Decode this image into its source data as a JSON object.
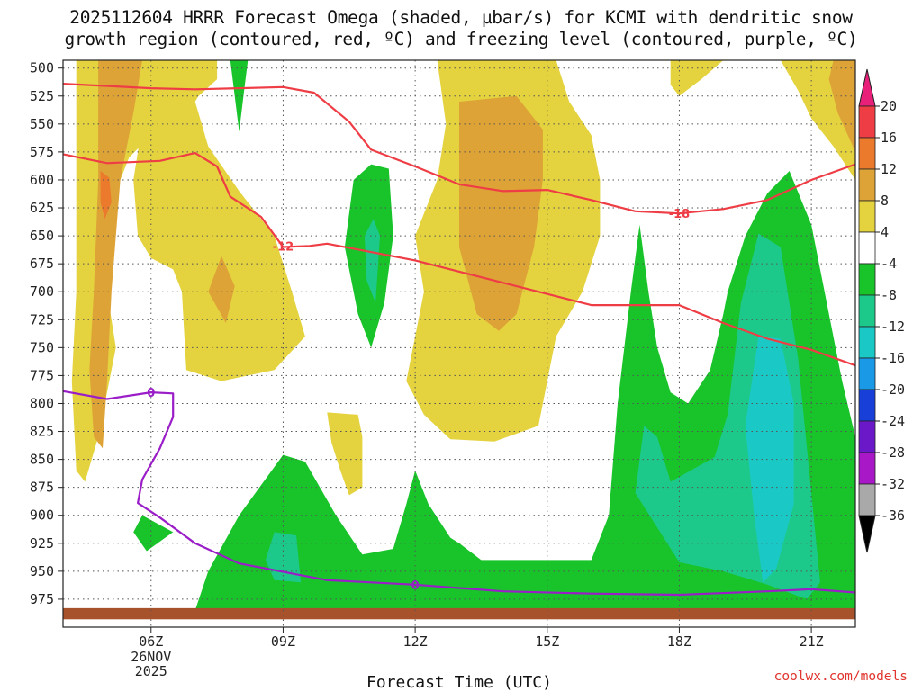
{
  "title": {
    "line1": "2025112604 HRRR Forecast Omega (shaded, µbar/s) for KCMI with dendritic snow",
    "line2": "growth region (contoured, red, ºC) and freezing level (contoured, purple, ºC)"
  },
  "credit": "coolwx.com/models",
  "chart_data": {
    "type": "heatmap",
    "title": "2025112604 HRRR Forecast Omega (shaded, µbar/s) for KCMI with dendritic snow growth region (contoured, red, ºC) and freezing level (contoured, purple, ºC)",
    "xlabel": "Forecast Time (UTC)",
    "ylabel": "",
    "x_ticks": [
      "06Z",
      "09Z",
      "12Z",
      "15Z",
      "18Z",
      "21Z"
    ],
    "x_tick_hours": [
      6,
      9,
      12,
      15,
      18,
      21
    ],
    "x_date_label": [
      "26NOV",
      "2025"
    ],
    "xlim_hours": [
      4.0,
      22.0
    ],
    "y_ticks": [
      500,
      525,
      550,
      575,
      600,
      625,
      650,
      675,
      700,
      725,
      750,
      775,
      800,
      825,
      850,
      875,
      900,
      925,
      950,
      975
    ],
    "ylim_hPa": [
      493,
      1000
    ],
    "y_inverted": true,
    "grid": true,
    "colorbar": {
      "labels": [
        20,
        16,
        12,
        8,
        4,
        -4,
        -8,
        -12,
        -16,
        -20,
        -24,
        -28,
        -32,
        -36
      ],
      "colors": [
        "#e8207a",
        "#ee3d45",
        "#ec7a2c",
        "#dea337",
        "#e4d33f",
        "#ffffff",
        "#18c42a",
        "#1dc98a",
        "#1ac9c6",
        "#1a9ae6",
        "#1840d8",
        "#6a18c8",
        "#a818c6",
        "#a9a9a9",
        "#000000"
      ]
    },
    "contours": [
      {
        "name": "-12",
        "color": "#ee3d45",
        "points": [
          [
            4.0,
            577
          ],
          [
            5.0,
            585
          ],
          [
            6.2,
            583
          ],
          [
            7.0,
            576
          ],
          [
            7.5,
            588
          ],
          [
            7.8,
            615
          ],
          [
            8.5,
            633
          ],
          [
            9.0,
            660
          ],
          [
            9.6,
            659
          ],
          [
            10.0,
            657
          ],
          [
            12.0,
            672
          ],
          [
            14.0,
            692
          ],
          [
            15.0,
            702
          ],
          [
            16.0,
            712
          ],
          [
            17.5,
            712
          ],
          [
            18.0,
            712
          ],
          [
            19.0,
            728
          ],
          [
            20.0,
            742
          ],
          [
            21.0,
            752
          ],
          [
            22.0,
            766
          ]
        ]
      },
      {
        "name": "-18",
        "color": "#ee3d45",
        "points": [
          [
            4.0,
            514
          ],
          [
            6.0,
            518
          ],
          [
            7.0,
            519
          ],
          [
            8.0,
            518
          ],
          [
            9.0,
            517
          ],
          [
            9.7,
            522
          ],
          [
            10.5,
            548
          ],
          [
            11.0,
            573
          ],
          [
            12.0,
            588
          ],
          [
            13.0,
            604
          ],
          [
            14.0,
            610
          ],
          [
            15.0,
            609
          ],
          [
            16.0,
            618
          ],
          [
            17.0,
            628
          ],
          [
            18.0,
            630
          ],
          [
            19.0,
            626
          ],
          [
            20.0,
            618
          ],
          [
            21.0,
            600
          ],
          [
            22.0,
            586
          ]
        ]
      },
      {
        "name": "0",
        "color": "#9a1dc8",
        "points": [
          [
            4.0,
            789
          ],
          [
            5.0,
            796
          ],
          [
            6.0,
            790
          ],
          [
            6.5,
            791
          ],
          [
            6.5,
            812
          ],
          [
            6.2,
            840
          ],
          [
            5.8,
            868
          ],
          [
            5.7,
            889
          ],
          [
            6.2,
            902
          ],
          [
            7.0,
            925
          ],
          [
            8.0,
            943
          ],
          [
            10.0,
            958
          ],
          [
            12.0,
            962
          ],
          [
            14.0,
            968
          ],
          [
            16.0,
            970
          ],
          [
            18.0,
            971
          ],
          [
            20.0,
            968
          ],
          [
            21.0,
            966
          ],
          [
            22.0,
            969
          ]
        ]
      }
    ],
    "contour_labels": [
      {
        "text": "-12",
        "series": "-12",
        "hour": 9.0,
        "hPa": 659
      },
      {
        "text": "-18",
        "series": "-18",
        "hour": 18.0,
        "hPa": 630
      },
      {
        "text": "0",
        "series": "0",
        "hour": 6.0,
        "hPa": 790
      },
      {
        "text": "0",
        "series": "0",
        "hour": 12.0,
        "hPa": 962
      }
    ],
    "shaded_regions": [
      {
        "category": "4 to 8",
        "color": "#e4d33f",
        "points": [
          [
            4.3,
            493
          ],
          [
            7.5,
            493
          ],
          [
            7.5,
            510
          ],
          [
            6.8,
            535
          ],
          [
            6.0,
            560
          ],
          [
            5.5,
            580
          ],
          [
            5.2,
            610
          ],
          [
            5.0,
            650
          ],
          [
            5.0,
            700
          ],
          [
            5.2,
            750
          ],
          [
            5.0,
            790
          ],
          [
            4.8,
            830
          ],
          [
            4.5,
            870
          ],
          [
            4.3,
            860
          ],
          [
            4.2,
            780
          ],
          [
            4.3,
            700
          ],
          [
            4.3,
            600
          ]
        ]
      },
      {
        "category": "4 to 8",
        "color": "#e4d33f",
        "points": [
          [
            6.2,
            493
          ],
          [
            7.3,
            493
          ],
          [
            7.3,
            510
          ],
          [
            7.0,
            530
          ],
          [
            7.3,
            570
          ],
          [
            8.0,
            610
          ],
          [
            8.8,
            650
          ],
          [
            9.2,
            700
          ],
          [
            9.5,
            740
          ],
          [
            8.8,
            770
          ],
          [
            7.6,
            780
          ],
          [
            6.8,
            770
          ],
          [
            6.7,
            700
          ],
          [
            6.5,
            680
          ],
          [
            6.0,
            670
          ],
          [
            5.7,
            650
          ],
          [
            5.6,
            600
          ],
          [
            5.8,
            550
          ]
        ]
      },
      {
        "category": "4 to 8",
        "color": "#e4d33f",
        "points": [
          [
            12.5,
            493
          ],
          [
            15.2,
            493
          ],
          [
            15.5,
            530
          ],
          [
            16.0,
            560
          ],
          [
            16.2,
            600
          ],
          [
            16.2,
            650
          ],
          [
            15.8,
            700
          ],
          [
            15.2,
            740
          ],
          [
            15.0,
            780
          ],
          [
            14.8,
            820
          ],
          [
            13.8,
            834
          ],
          [
            12.8,
            832
          ],
          [
            12.2,
            810
          ],
          [
            11.8,
            780
          ],
          [
            12.0,
            740
          ],
          [
            12.2,
            700
          ],
          [
            12.0,
            650
          ],
          [
            12.5,
            600
          ],
          [
            12.7,
            550
          ]
        ]
      },
      {
        "category": "4 to 8",
        "color": "#e4d33f",
        "points": [
          [
            10.0,
            808
          ],
          [
            10.7,
            810
          ],
          [
            10.8,
            830
          ],
          [
            10.8,
            875
          ],
          [
            10.5,
            882
          ],
          [
            10.3,
            860
          ],
          [
            10.1,
            835
          ]
        ]
      },
      {
        "category": "4 to 8",
        "color": "#e4d33f",
        "points": [
          [
            17.8,
            493
          ],
          [
            19.0,
            493
          ],
          [
            18.5,
            510
          ],
          [
            18.0,
            525
          ],
          [
            17.8,
            515
          ]
        ]
      },
      {
        "category": "4 to 8",
        "color": "#e4d33f",
        "points": [
          [
            20.3,
            493
          ],
          [
            22.0,
            493
          ],
          [
            22.0,
            600
          ],
          [
            21.5,
            570
          ],
          [
            21.0,
            545
          ],
          [
            20.7,
            520
          ]
        ]
      },
      {
        "category": "8 to 12",
        "color": "#dea337",
        "points": [
          [
            4.8,
            493
          ],
          [
            5.8,
            493
          ],
          [
            5.6,
            540
          ],
          [
            5.3,
            600
          ],
          [
            5.1,
            700
          ],
          [
            5.0,
            780
          ],
          [
            4.9,
            840
          ],
          [
            4.7,
            830
          ],
          [
            4.6,
            770
          ],
          [
            4.7,
            700
          ],
          [
            4.8,
            600
          ],
          [
            4.8,
            540
          ]
        ]
      },
      {
        "category": "8 to 12",
        "color": "#dea337",
        "points": [
          [
            7.6,
            668
          ],
          [
            7.9,
            695
          ],
          [
            7.7,
            728
          ],
          [
            7.3,
            700
          ]
        ]
      },
      {
        "category": "8 to 12",
        "color": "#dea337",
        "points": [
          [
            13.0,
            530
          ],
          [
            14.3,
            525
          ],
          [
            14.9,
            555
          ],
          [
            14.9,
            600
          ],
          [
            14.7,
            660
          ],
          [
            14.3,
            720
          ],
          [
            13.9,
            735
          ],
          [
            13.4,
            720
          ],
          [
            13.0,
            660
          ],
          [
            13.0,
            600
          ]
        ]
      },
      {
        "category": "8 to 12",
        "color": "#dea337",
        "points": [
          [
            21.5,
            493
          ],
          [
            22.0,
            493
          ],
          [
            22.0,
            575
          ],
          [
            21.6,
            540
          ],
          [
            21.4,
            510
          ]
        ]
      },
      {
        "category": "12 to 16",
        "color": "#ec7a2c",
        "points": [
          [
            4.85,
            592
          ],
          [
            5.05,
            598
          ],
          [
            5.1,
            620
          ],
          [
            4.95,
            635
          ],
          [
            4.85,
            620
          ]
        ]
      },
      {
        "category": "-8 to -4",
        "color": "#18c42a",
        "points": [
          [
            7.8,
            493
          ],
          [
            8.2,
            493
          ],
          [
            8.1,
            525
          ],
          [
            8.0,
            557
          ],
          [
            7.9,
            525
          ]
        ]
      },
      {
        "category": "-8 to -4",
        "color": "#18c42a",
        "points": [
          [
            11.0,
            586
          ],
          [
            11.4,
            590
          ],
          [
            11.5,
            650
          ],
          [
            11.3,
            710
          ],
          [
            11.0,
            750
          ],
          [
            10.7,
            720
          ],
          [
            10.4,
            660
          ],
          [
            10.6,
            600
          ]
        ]
      },
      {
        "category": "-8 to -4",
        "color": "#18c42a",
        "points": [
          [
            7.0,
            985
          ],
          [
            7.3,
            950
          ],
          [
            8.0,
            900
          ],
          [
            9.0,
            846
          ],
          [
            9.5,
            852
          ],
          [
            10.2,
            900
          ],
          [
            10.8,
            935
          ],
          [
            11.5,
            930
          ],
          [
            11.8,
            890
          ],
          [
            12.0,
            860
          ],
          [
            12.3,
            890
          ],
          [
            12.8,
            920
          ],
          [
            13.0,
            925
          ],
          [
            13.5,
            940
          ],
          [
            16.0,
            940
          ],
          [
            16.4,
            900
          ],
          [
            16.6,
            800
          ],
          [
            16.9,
            700
          ],
          [
            17.1,
            640
          ],
          [
            17.3,
            700
          ],
          [
            17.5,
            750
          ],
          [
            17.8,
            790
          ],
          [
            18.2,
            800
          ],
          [
            18.7,
            770
          ],
          [
            19.0,
            720
          ],
          [
            19.1,
            700
          ],
          [
            19.5,
            650
          ],
          [
            20.0,
            612
          ],
          [
            20.5,
            592
          ],
          [
            21.0,
            640
          ],
          [
            21.3,
            700
          ],
          [
            21.7,
            780
          ],
          [
            22.0,
            830
          ],
          [
            22.0,
            985
          ]
        ]
      },
      {
        "category": "-8 to -4",
        "color": "#18c42a",
        "points": [
          [
            5.8,
            900
          ],
          [
            6.5,
            915
          ],
          [
            5.9,
            932
          ],
          [
            5.6,
            915
          ]
        ]
      },
      {
        "category": "-12 to -8",
        "color": "#1dc98a",
        "points": [
          [
            11.05,
            635
          ],
          [
            11.2,
            650
          ],
          [
            11.1,
            710
          ],
          [
            10.9,
            690
          ],
          [
            10.85,
            650
          ]
        ]
      },
      {
        "category": "-12 to -8",
        "color": "#1dc98a",
        "points": [
          [
            8.8,
            915
          ],
          [
            9.3,
            918
          ],
          [
            9.4,
            960
          ],
          [
            8.8,
            958
          ],
          [
            8.6,
            940
          ]
        ]
      },
      {
        "category": "-12 to -8",
        "color": "#1dc98a",
        "points": [
          [
            17.0,
            880
          ],
          [
            17.2,
            820
          ],
          [
            17.5,
            830
          ],
          [
            17.8,
            870
          ],
          [
            18.8,
            848
          ],
          [
            19.1,
            810
          ],
          [
            19.4,
            710
          ],
          [
            19.8,
            648
          ],
          [
            20.3,
            660
          ],
          [
            20.7,
            760
          ],
          [
            20.9,
            840
          ],
          [
            21.2,
            960
          ],
          [
            20.9,
            975
          ],
          [
            20.0,
            962
          ],
          [
            19.0,
            950
          ],
          [
            18.0,
            942
          ]
        ]
      },
      {
        "category": "-16 to -12",
        "color": "#1ac9c6",
        "points": [
          [
            19.8,
            740
          ],
          [
            20.3,
            742
          ],
          [
            20.6,
            800
          ],
          [
            20.6,
            890
          ],
          [
            20.2,
            948
          ],
          [
            19.9,
            960
          ],
          [
            19.7,
            900
          ],
          [
            19.5,
            820
          ]
        ]
      }
    ],
    "ground_band": {
      "color": "#a8522b",
      "from_hPa": 983,
      "to_hPa": 993
    }
  }
}
